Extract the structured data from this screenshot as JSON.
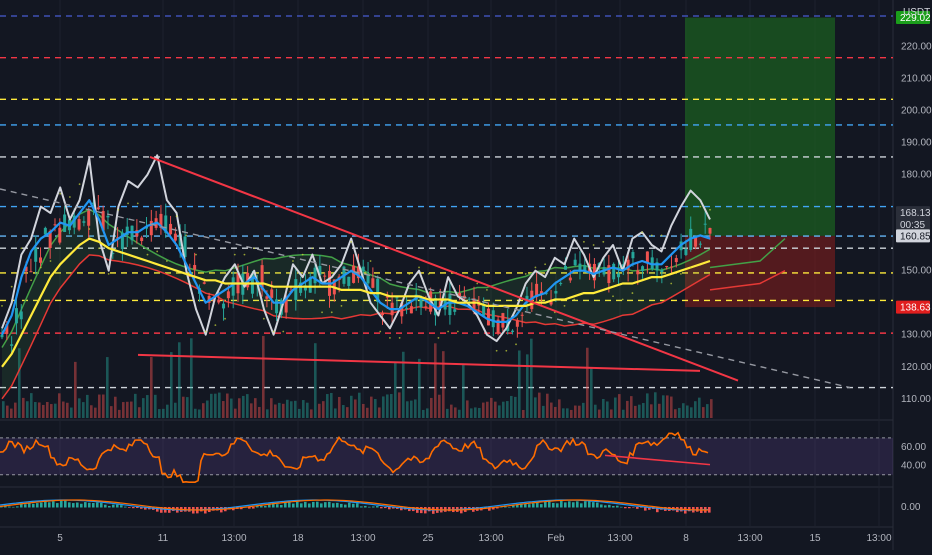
{
  "currency": "USDT",
  "price_axis": {
    "labels": [
      "220.00",
      "210.00",
      "200.00",
      "190.00",
      "180.00",
      "150.00",
      "130.00",
      "120.00",
      "110.00"
    ],
    "values": [
      220,
      210,
      200,
      190,
      180,
      150,
      130,
      120,
      110
    ]
  },
  "price_tags": [
    {
      "text": "229.02",
      "value": 229.02,
      "bg": "#1b9e1b",
      "color": "#ffffff"
    },
    {
      "text": "168.13",
      "value": 168.13,
      "bg": "#2a2e39",
      "color": "#d1d4dc"
    },
    {
      "text": "00:35",
      "value": 164.4,
      "bg": "#2a2e39",
      "color": "#d1d4dc"
    },
    {
      "text": "160.85",
      "value": 160.85,
      "bg": "#d1d4dc",
      "color": "#131722"
    },
    {
      "text": "138.63",
      "value": 138.63,
      "bg": "#e01e1e",
      "color": "#ffffff"
    }
  ],
  "rsi": {
    "labels": [
      "60.00",
      "40.00"
    ],
    "values": [
      60,
      40
    ],
    "overbought": 70,
    "oversold": 30
  },
  "macd": {
    "labels": [
      "0.00"
    ]
  },
  "time_axis": {
    "labels": [
      "5",
      "11",
      "13:00",
      "18",
      "13:00",
      "25",
      "13:00",
      "Feb",
      "13:00",
      "8",
      "13:00",
      "15",
      "13:00"
    ],
    "x": [
      60,
      163,
      234,
      298,
      363,
      428,
      491,
      556,
      620,
      686,
      750,
      815,
      879
    ]
  },
  "horizontal_levels": [
    {
      "value": 229.5,
      "color": "#3f51b5"
    },
    {
      "value": 216.5,
      "color": "#f23645"
    },
    {
      "value": 203.5,
      "color": "#ffeb3b"
    },
    {
      "value": 195.5,
      "color": "#42a5f5"
    },
    {
      "value": 185.5,
      "color": "#ced4da"
    },
    {
      "value": 170.0,
      "color": "#42a5f5"
    },
    {
      "value": 160.8,
      "color": "#64b5f6"
    },
    {
      "value": 157.0,
      "color": "#ced4da"
    },
    {
      "value": 149.3,
      "color": "#ffeb3b"
    },
    {
      "value": 140.7,
      "color": "#ffeb3b"
    },
    {
      "value": 130.5,
      "color": "#f23645"
    },
    {
      "value": 113.5,
      "color": "#ced4da"
    }
  ],
  "position": {
    "entry": 160.85,
    "target": 229.02,
    "stop": 138.63,
    "profit_color": "#1b5e20",
    "loss_color": "#7f1d1d"
  },
  "chart_data": {
    "type": "line",
    "title": "",
    "ylim": [
      104,
      232
    ],
    "price_series": [
      {
        "name": "price",
        "color": "#d1d4dc",
        "values": [
          132,
          140,
          155,
          160,
          170,
          168,
          176,
          166,
          172,
          185,
          160,
          150,
          170,
          178,
          176,
          180,
          186,
          172,
          168,
          150,
          138,
          130,
          142,
          148,
          152,
          145,
          150,
          138,
          130,
          140,
          152,
          148,
          155,
          146,
          148,
          152,
          160,
          150,
          140,
          136,
          132,
          138,
          146,
          150,
          142,
          136,
          148,
          142,
          140,
          136,
          130,
          128,
          132,
          138,
          146,
          150,
          148,
          154,
          152,
          160,
          155,
          148,
          154,
          158,
          150,
          160,
          162,
          158,
          156,
          164,
          170,
          175,
          172,
          166
        ]
      },
      {
        "name": "ma-fast",
        "color": "#2196f3",
        "values": [
          130,
          136,
          148,
          156,
          160,
          162,
          165,
          164,
          168,
          172,
          166,
          158,
          160,
          162,
          162,
          164,
          165,
          162,
          158,
          152,
          146,
          140,
          142,
          144,
          146,
          146,
          148,
          144,
          140,
          140,
          144,
          146,
          148,
          146,
          146,
          148,
          150,
          148,
          144,
          140,
          138,
          138,
          140,
          142,
          140,
          138,
          140,
          140,
          139,
          137,
          135,
          134,
          134,
          136,
          140,
          142,
          143,
          146,
          148,
          150,
          150,
          149,
          150,
          151,
          150,
          152,
          153,
          152,
          152,
          155,
          158,
          160,
          161,
          160
        ]
      },
      {
        "name": "ma-slow",
        "color": "#ffeb3b",
        "values": [
          120,
          124,
          130,
          136,
          142,
          148,
          152,
          155,
          158,
          160,
          159,
          157,
          156,
          155,
          154,
          153,
          152,
          151,
          150,
          149,
          148,
          147,
          147,
          146,
          146,
          146,
          146,
          146,
          145,
          145,
          145,
          145,
          145,
          145,
          145,
          144,
          144,
          144,
          143,
          143,
          142,
          142,
          142,
          142,
          141,
          141,
          141,
          140,
          140,
          140,
          139,
          139,
          139,
          139,
          139,
          140,
          140,
          141,
          141,
          142,
          143,
          143,
          144,
          145,
          146,
          146,
          147,
          148,
          148,
          149,
          150,
          151,
          152,
          153
        ]
      }
    ]
  }
}
